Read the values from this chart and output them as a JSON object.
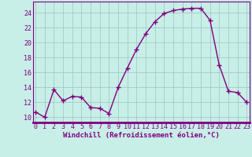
{
  "x": [
    0,
    1,
    2,
    3,
    4,
    5,
    6,
    7,
    8,
    9,
    10,
    11,
    12,
    13,
    14,
    15,
    16,
    17,
    18,
    19,
    20,
    21,
    22,
    23
  ],
  "y": [
    10.7,
    10.0,
    13.7,
    12.2,
    12.8,
    12.7,
    11.3,
    11.2,
    10.5,
    14.0,
    16.6,
    19.1,
    21.2,
    22.8,
    23.9,
    24.3,
    24.5,
    24.6,
    24.6,
    23.0,
    17.0,
    13.5,
    13.3,
    12.0
  ],
  "line_color": "#800080",
  "marker": "+",
  "markersize": 4,
  "linewidth": 1.0,
  "bg_color": "#C8EEE8",
  "grid_color": "#A0CCC4",
  "xlabel": "Windchill (Refroidissement éolien,°C)",
  "xlabel_color": "#800080",
  "xlabel_fontsize": 6.5,
  "ytick_labels": [
    "10",
    "12",
    "14",
    "16",
    "18",
    "20",
    "22",
    "24"
  ],
  "ytick_vals": [
    10,
    12,
    14,
    16,
    18,
    20,
    22,
    24
  ],
  "ylim": [
    9.3,
    25.5
  ],
  "xlim": [
    -0.3,
    23.3
  ],
  "tick_color": "#800080",
  "tick_fontsize": 6.0,
  "spine_color": "#800080",
  "bottom_bar_color": "#800080"
}
